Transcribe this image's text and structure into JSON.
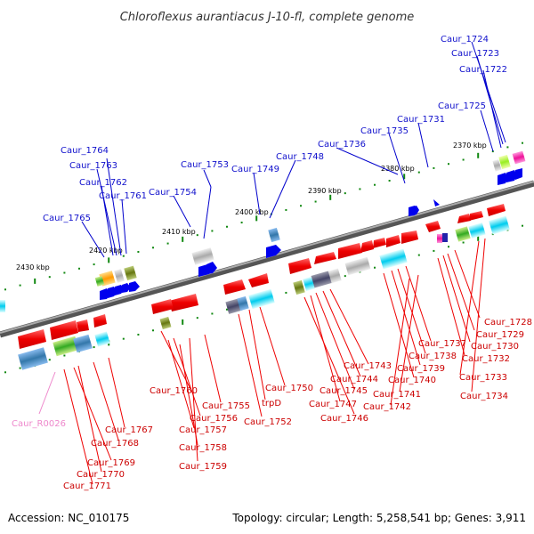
{
  "title": "Chloroflexus aurantiacus J-10-fl, complete genome",
  "footer": {
    "accession": "Accession: NC_010175",
    "summary": "Topology: circular; Length: 5,258,541 bp; Genes: 3,911"
  },
  "kbp_marks": [
    "2370 kbp",
    "2380 kbp",
    "2390 kbp",
    "2400 kbp",
    "2410 kbp",
    "2420 kbp",
    "2430 kbp"
  ],
  "labels_top": [
    "Caur_1724",
    "Caur_1723",
    "Caur_1722",
    "Caur_1725",
    "Caur_1731",
    "Caur_1735",
    "Caur_1736",
    "Caur_1748",
    "Caur_1749",
    "Caur_1753",
    "Caur_1754",
    "Caur_1764",
    "Caur_1763",
    "Caur_1762",
    "Caur_1761",
    "Caur_1765"
  ],
  "labels_bottom_right": [
    "Caur_1728",
    "Caur_1729",
    "Caur_1730",
    "Caur_1737",
    "Caur_1738",
    "Caur_1732",
    "Caur_1739",
    "Caur_1740",
    "Caur_1743",
    "Caur_1744",
    "Caur_1733",
    "Caur_1745",
    "Caur_1741",
    "Caur_1734",
    "Caur_1747",
    "Caur_1742",
    "Caur_1746"
  ],
  "labels_bottom_mid": [
    "Caur_1750",
    "Caur_1760",
    "Caur_1755",
    "trpD",
    "Caur_1756",
    "Caur_1752",
    "Caur_1757",
    "Caur_1758",
    "Caur_1759"
  ],
  "labels_bottom_left": [
    "Caur_R0026",
    "Caur_1767",
    "Caur_1768",
    "Caur_1769",
    "Caur_1770",
    "Caur_1771"
  ],
  "colors": {
    "forward_gene": "#0000ee",
    "reverse_gene": "#ee0000",
    "backbone": "#808080",
    "tick": "#118811",
    "rrna": "#ee88cc"
  }
}
